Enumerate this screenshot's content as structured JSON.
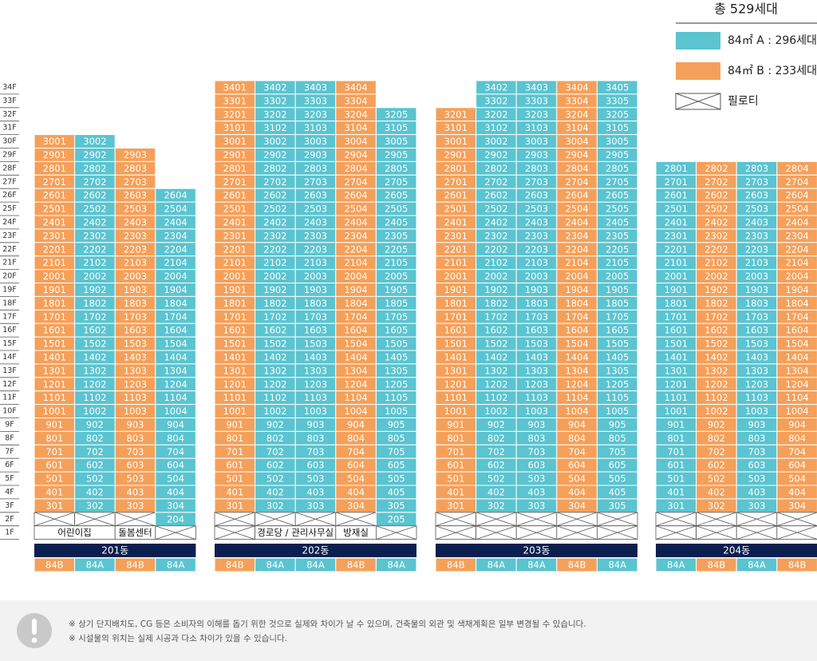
{
  "legend": {
    "total": "총 529세대",
    "items": [
      {
        "label": "84㎡ A : 296세대",
        "color": "#5ac4d0"
      },
      {
        "label": "84㎡ B : 233세대",
        "color": "#f5a05a"
      }
    ],
    "pilotis": "필로티"
  },
  "colors": {
    "84A": "#5ac4d0",
    "84B": "#f5a05a"
  },
  "floors": [
    "34F",
    "33F",
    "32F",
    "31F",
    "30F",
    "29F",
    "28F",
    "27F",
    "26F",
    "25F",
    "24F",
    "23F",
    "22F",
    "21F",
    "20F",
    "19F",
    "18F",
    "17F",
    "16F",
    "15F",
    "14F",
    "13F",
    "12F",
    "11F",
    "10F",
    "9F",
    "8F",
    "7F",
    "6F",
    "5F",
    "4F",
    "3F",
    "2F",
    "1F"
  ],
  "buildings": [
    {
      "name": "201동",
      "columns": [
        {
          "type": "84B",
          "pilotis_2f": true,
          "units": [
            "3001",
            "2901",
            "2801",
            "2701",
            "2601",
            "2501",
            "2401",
            "2301",
            "2201",
            "2101",
            "2001",
            "1901",
            "1801",
            "1701",
            "1601",
            "1501",
            "1401",
            "1301",
            "1201",
            "1101",
            "1001",
            "901",
            "801",
            "701",
            "601",
            "501",
            "401",
            "301"
          ]
        },
        {
          "type": "84A",
          "pilotis_2f": true,
          "units": [
            "3002",
            "2902",
            "2802",
            "2702",
            "2602",
            "2502",
            "2402",
            "2302",
            "2202",
            "2102",
            "2002",
            "1902",
            "1802",
            "1702",
            "1602",
            "1502",
            "1402",
            "1302",
            "1202",
            "1102",
            "1002",
            "902",
            "802",
            "702",
            "602",
            "502",
            "402",
            "302"
          ]
        },
        {
          "type": "84B",
          "pilotis_2f": true,
          "units": [
            "2903",
            "2803",
            "2703",
            "2603",
            "2503",
            "2403",
            "2303",
            "2203",
            "2103",
            "2003",
            "1903",
            "1803",
            "1703",
            "1603",
            "1503",
            "1403",
            "1303",
            "1203",
            "1103",
            "1003",
            "903",
            "803",
            "703",
            "603",
            "503",
            "403",
            "303"
          ]
        },
        {
          "type": "84A",
          "pilotis_2f": false,
          "units": [
            "2604",
            "2504",
            "2404",
            "2304",
            "2204",
            "2104",
            "2004",
            "1904",
            "1804",
            "1704",
            "1604",
            "1504",
            "1404",
            "1304",
            "1204",
            "1104",
            "1004",
            "904",
            "804",
            "704",
            "604",
            "504",
            "404",
            "304",
            "204"
          ]
        }
      ],
      "ground": [
        {
          "label": "어린이집",
          "span": 2
        },
        {
          "label": "돌봄센터",
          "span": 1
        },
        {
          "span": 1
        }
      ]
    },
    {
      "name": "202동",
      "columns": [
        {
          "type": "84B",
          "pilotis_2f": true,
          "units": [
            "3401",
            "3301",
            "3201",
            "3101",
            "3001",
            "2901",
            "2801",
            "2701",
            "2601",
            "2501",
            "2401",
            "2301",
            "2201",
            "2101",
            "2001",
            "1901",
            "1801",
            "1701",
            "1601",
            "1501",
            "1401",
            "1301",
            "1201",
            "1101",
            "1001",
            "901",
            "801",
            "701",
            "601",
            "501",
            "401",
            "301"
          ]
        },
        {
          "type": "84A",
          "pilotis_2f": true,
          "units": [
            "3402",
            "3302",
            "3202",
            "3102",
            "3002",
            "2902",
            "2802",
            "2702",
            "2602",
            "2502",
            "2402",
            "2302",
            "2202",
            "2102",
            "2002",
            "1902",
            "1802",
            "1702",
            "1602",
            "1502",
            "1402",
            "1302",
            "1202",
            "1102",
            "1002",
            "902",
            "802",
            "702",
            "602",
            "502",
            "402",
            "302"
          ]
        },
        {
          "type": "84A",
          "pilotis_2f": true,
          "units": [
            "3403",
            "3303",
            "3203",
            "3103",
            "3003",
            "2903",
            "2803",
            "2703",
            "2603",
            "2503",
            "2403",
            "2303",
            "2203",
            "2103",
            "2003",
            "1903",
            "1803",
            "1703",
            "1603",
            "1503",
            "1403",
            "1303",
            "1203",
            "1103",
            "1003",
            "903",
            "803",
            "703",
            "603",
            "503",
            "403",
            "303"
          ]
        },
        {
          "type": "84B",
          "pilotis_2f": true,
          "units": [
            "3404",
            "3304",
            "3204",
            "3104",
            "3004",
            "2904",
            "2804",
            "2704",
            "2604",
            "2504",
            "2404",
            "2304",
            "2204",
            "2104",
            "2004",
            "1904",
            "1804",
            "1704",
            "1604",
            "1504",
            "1404",
            "1304",
            "1204",
            "1104",
            "1004",
            "904",
            "804",
            "704",
            "604",
            "504",
            "404",
            "304"
          ]
        },
        {
          "type": "84A",
          "pilotis_2f": false,
          "units": [
            "3205",
            "3105",
            "3005",
            "2905",
            "2805",
            "2705",
            "2605",
            "2505",
            "2405",
            "2305",
            "2205",
            "2105",
            "2005",
            "1905",
            "1805",
            "1705",
            "1605",
            "1505",
            "1405",
            "1305",
            "1205",
            "1105",
            "1005",
            "905",
            "805",
            "705",
            "605",
            "505",
            "405",
            "305",
            "205"
          ]
        }
      ],
      "ground": [
        {
          "span": 1
        },
        {
          "label": "경로당 / 관리사무실",
          "span": 2
        },
        {
          "label": "방재실",
          "span": 1
        },
        {
          "span": 1
        }
      ]
    },
    {
      "name": "203동",
      "columns": [
        {
          "type": "84B",
          "pilotis_2f": true,
          "units": [
            "3201",
            "3101",
            "3001",
            "2901",
            "2801",
            "2701",
            "2601",
            "2501",
            "2401",
            "2301",
            "2201",
            "2101",
            "2001",
            "1901",
            "1801",
            "1701",
            "1601",
            "1501",
            "1401",
            "1301",
            "1201",
            "1101",
            "1001",
            "901",
            "801",
            "701",
            "601",
            "501",
            "401",
            "301"
          ]
        },
        {
          "type": "84A",
          "pilotis_2f": true,
          "units": [
            "3402",
            "3302",
            "3202",
            "3102",
            "3002",
            "2902",
            "2802",
            "2702",
            "2602",
            "2502",
            "2402",
            "2302",
            "2202",
            "2102",
            "2002",
            "1902",
            "1802",
            "1702",
            "1602",
            "1502",
            "1402",
            "1302",
            "1202",
            "1102",
            "1002",
            "902",
            "802",
            "702",
            "602",
            "502",
            "402",
            "302"
          ]
        },
        {
          "type": "84A",
          "pilotis_2f": true,
          "units": [
            "3403",
            "3303",
            "3203",
            "3103",
            "3003",
            "2903",
            "2803",
            "2703",
            "2603",
            "2503",
            "2403",
            "2303",
            "2203",
            "2103",
            "2003",
            "1903",
            "1803",
            "1703",
            "1603",
            "1503",
            "1403",
            "1303",
            "1203",
            "1103",
            "1003",
            "903",
            "803",
            "703",
            "603",
            "503",
            "403",
            "303"
          ]
        },
        {
          "type": "84B",
          "pilotis_2f": true,
          "units": [
            "3404",
            "3304",
            "3204",
            "3104",
            "3004",
            "2904",
            "2804",
            "2704",
            "2604",
            "2504",
            "2404",
            "2304",
            "2204",
            "2104",
            "2004",
            "1904",
            "1804",
            "1704",
            "1604",
            "1504",
            "1404",
            "1304",
            "1204",
            "1104",
            "1004",
            "904",
            "804",
            "704",
            "604",
            "504",
            "404",
            "304"
          ]
        },
        {
          "type": "84A",
          "pilotis_2f": true,
          "units": [
            "3405",
            "3305",
            "3205",
            "3105",
            "3005",
            "2905",
            "2805",
            "2705",
            "2605",
            "2505",
            "2405",
            "2305",
            "2205",
            "2105",
            "2005",
            "1905",
            "1805",
            "1705",
            "1605",
            "1505",
            "1405",
            "1305",
            "1205",
            "1105",
            "1005",
            "905",
            "805",
            "705",
            "605",
            "505",
            "405",
            "305"
          ]
        }
      ],
      "ground": [
        {
          "span": 1
        },
        {
          "span": 1
        },
        {
          "span": 1
        },
        {
          "span": 1
        },
        {
          "span": 1
        }
      ]
    },
    {
      "name": "204동",
      "columns": [
        {
          "type": "84A",
          "pilotis_2f": true,
          "units": [
            "2801",
            "2701",
            "2601",
            "2501",
            "2401",
            "2301",
            "2201",
            "2101",
            "2001",
            "1901",
            "1801",
            "1701",
            "1601",
            "1501",
            "1401",
            "1301",
            "1201",
            "1101",
            "1001",
            "901",
            "801",
            "701",
            "601",
            "501",
            "401",
            "301"
          ]
        },
        {
          "type": "84B",
          "pilotis_2f": true,
          "units": [
            "2802",
            "2702",
            "2602",
            "2502",
            "2402",
            "2302",
            "2202",
            "2102",
            "2002",
            "1902",
            "1802",
            "1702",
            "1602",
            "1502",
            "1402",
            "1302",
            "1202",
            "1102",
            "1002",
            "902",
            "802",
            "702",
            "602",
            "502",
            "402",
            "302"
          ]
        },
        {
          "type": "84A",
          "pilotis_2f": true,
          "units": [
            "2803",
            "2703",
            "2603",
            "2503",
            "2403",
            "2303",
            "2203",
            "2103",
            "2003",
            "1903",
            "1803",
            "1703",
            "1603",
            "1503",
            "1403",
            "1303",
            "1203",
            "1103",
            "1003",
            "903",
            "803",
            "703",
            "603",
            "503",
            "403",
            "303"
          ]
        },
        {
          "type": "84B",
          "pilotis_2f": true,
          "units": [
            "2804",
            "2704",
            "2604",
            "2504",
            "2404",
            "2304",
            "2204",
            "2104",
            "2004",
            "1904",
            "1804",
            "1704",
            "1604",
            "1504",
            "1404",
            "1304",
            "1204",
            "1104",
            "1004",
            "904",
            "804",
            "704",
            "604",
            "504",
            "404",
            "304"
          ]
        }
      ],
      "ground": [
        {
          "span": 1
        },
        {
          "span": 1
        },
        {
          "span": 1
        },
        {
          "span": 1
        }
      ]
    }
  ],
  "notes": [
    "※ 상기 단지배치도, CG 등은 소비자의 이해를 돕기 위한 것으로 실제와 차이가 날 수 있으며, 건축물의 외관 및 색채계획은 일부 변경될 수 있습니다.",
    "※ 시설물의 위치는 실제 시공과 다소 차이가 있을 수 있습니다."
  ]
}
